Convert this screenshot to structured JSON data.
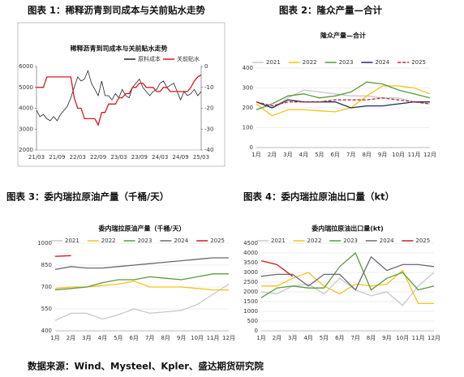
{
  "captions": [
    "图表 1：稀释沥青到司成本与关前贴水走势",
    "图表 2：隆众产量—合计",
    "图表 3：委内瑞拉原油产量（千桶/天）",
    "图表 4：委内瑞拉原油出口量（kt）"
  ],
  "source": "数据来源：Wind、Mysteel、Kpler、盛达期货研究院",
  "chart_data": [
    {
      "type": "line",
      "title": "稀释沥青到司成本与关前贴水走势",
      "categories": [
        "21/03",
        null,
        null,
        null,
        null,
        null,
        "21/09",
        null,
        null,
        null,
        null,
        null,
        "22/03",
        null,
        null,
        null,
        null,
        null,
        "22/09",
        null,
        null,
        null,
        null,
        null,
        "23/03",
        null,
        null,
        null,
        null,
        null,
        "23/09",
        null,
        null,
        null,
        null,
        null,
        "24/03",
        null,
        null,
        null,
        null,
        null,
        "24/09",
        null,
        null,
        null,
        null,
        null,
        "25/03"
      ],
      "series": [
        {
          "name": "原料成本",
          "color": "#222222",
          "values": [
            3900,
            3600,
            3700,
            3500,
            3400,
            3600,
            3400,
            3700,
            3900,
            4100,
            4500,
            5000,
            5500,
            5300,
            5400,
            5800,
            5200,
            4900,
            4600,
            5300,
            4600,
            4600,
            4400,
            4700,
            4500,
            4900,
            4600,
            4500,
            5000,
            5200,
            5400,
            5000,
            4800,
            4600,
            4800,
            4900,
            5200,
            5300,
            5000,
            5100,
            5200,
            4800,
            4400,
            4800,
            4600,
            4700,
            4900,
            4600,
            4800
          ]
        },
        {
          "name": "关前贴水",
          "color": "#d7191c",
          "axis": "y2",
          "values": [
            -10,
            -10,
            -10,
            -5,
            -5,
            -5,
            -5,
            -5,
            -5,
            -5,
            -5,
            -15,
            -20,
            -20,
            -25,
            -25,
            -25,
            -25,
            -28,
            -22,
            -22,
            -18,
            -18,
            -18,
            -15,
            -15,
            -13,
            -13,
            -10,
            -10,
            -8,
            -8,
            -10,
            -10,
            -10,
            -12,
            -12,
            -10,
            -10,
            -12,
            -12,
            -12,
            -12,
            -12,
            -12,
            -10,
            -7,
            -5,
            -4
          ]
        }
      ],
      "ylim": [
        2000,
        6000
      ],
      "yticks": [
        2000,
        3000,
        4000,
        5000,
        6000
      ],
      "y2lim": [
        -40,
        0
      ],
      "y2ticks": [
        0,
        -10,
        -20,
        -30,
        -40
      ],
      "grid": false,
      "legend": "top-right"
    },
    {
      "type": "line",
      "title": "隆众产量—合计",
      "categories": [
        "1月",
        "2月",
        "3月",
        "4月",
        "5月",
        "6月",
        "7月",
        "8月",
        "9月",
        "10月",
        "11月",
        "12月"
      ],
      "series": [
        {
          "name": "2021",
          "color": "#c8c8c8",
          "values": [
            230,
            200,
            250,
            290,
            280,
            270,
            260,
            260,
            250,
            250,
            230,
            220
          ]
        },
        {
          "name": "2022",
          "color": "#f2c418",
          "values": [
            220,
            160,
            190,
            190,
            185,
            180,
            200,
            260,
            310,
            310,
            300,
            270
          ]
        },
        {
          "name": "2023",
          "color": "#5a9b3a",
          "values": [
            190,
            220,
            260,
            270,
            250,
            260,
            280,
            330,
            320,
            290,
            270,
            250
          ]
        },
        {
          "name": "2024",
          "color": "#1f2d5a",
          "values": [
            230,
            200,
            240,
            230,
            230,
            230,
            200,
            210,
            210,
            220,
            230,
            230
          ]
        },
        {
          "name": "2025",
          "color": "#c0282d",
          "dash": true,
          "values": [
            230,
            210,
            230,
            230,
            230,
            240,
            240,
            240,
            250,
            240,
            230,
            220
          ]
        }
      ],
      "ylim": [
        0,
        400
      ],
      "yticks": [
        0,
        100,
        200,
        300,
        400
      ],
      "grid": true,
      "legend": "top"
    },
    {
      "type": "line",
      "title": "委内瑞拉原油产量（千桶/天）",
      "categories": [
        "1月",
        "2月",
        "3月",
        "4月",
        "5月",
        "6月",
        "7月",
        "8月",
        "9月",
        "10月",
        "11月",
        "12月"
      ],
      "series": [
        {
          "name": "2021",
          "color": "#c8c8c8",
          "values": [
            470,
            520,
            520,
            480,
            510,
            550,
            520,
            530,
            540,
            580,
            650,
            720
          ]
        },
        {
          "name": "2022",
          "color": "#f2c418",
          "values": [
            690,
            700,
            700,
            710,
            720,
            740,
            700,
            700,
            700,
            690,
            680,
            680
          ]
        },
        {
          "name": "2023",
          "color": "#5a9b3a",
          "values": [
            680,
            690,
            700,
            730,
            750,
            750,
            770,
            760,
            750,
            770,
            790,
            790
          ]
        },
        {
          "name": "2024",
          "color": "#6b6878",
          "values": [
            820,
            840,
            830,
            830,
            840,
            850,
            860,
            870,
            880,
            890,
            900,
            900
          ]
        },
        {
          "name": "2025",
          "color": "#d7191c",
          "values": [
            910,
            915,
            null,
            null,
            null,
            null,
            null,
            null,
            null,
            null,
            null,
            null
          ]
        }
      ],
      "ylim": [
        400,
        1000
      ],
      "yticks": [
        400,
        550,
        700,
        850,
        1000
      ],
      "grid": true,
      "legend": "top"
    },
    {
      "type": "line",
      "title": "委内瑞拉原油出口量(kt)",
      "categories": [
        "1月",
        "2月",
        "3月",
        "4月",
        "5月",
        "6月",
        "7月",
        "8月",
        "9月",
        "10月",
        "11月",
        "12月"
      ],
      "series": [
        {
          "name": "2021",
          "color": "#c8c8c8",
          "values": [
            2000,
            1900,
            2300,
            2400,
            1900,
            2700,
            2100,
            1800,
            2000,
            1300,
            2300,
            3000
          ]
        },
        {
          "name": "2022",
          "color": "#f2c418",
          "values": [
            2300,
            2300,
            2700,
            3000,
            2300,
            1900,
            2400,
            2300,
            2400,
            3100,
            1400,
            1400
          ]
        },
        {
          "name": "2023",
          "color": "#5a9b3a",
          "values": [
            1700,
            2200,
            2300,
            2200,
            2200,
            3300,
            4000,
            2100,
            2700,
            3000,
            2100,
            2300
          ]
        },
        {
          "name": "2024",
          "color": "#6b6878",
          "values": [
            2800,
            2900,
            2900,
            2300,
            2900,
            2900,
            2100,
            3800,
            3100,
            3400,
            3400,
            3300
          ]
        },
        {
          "name": "2025",
          "color": "#d7191c",
          "values": [
            3600,
            3400,
            2800,
            null,
            null,
            null,
            null,
            null,
            null,
            null,
            null,
            null
          ]
        }
      ],
      "ylim": [
        0,
        4500
      ],
      "yticks": [
        0,
        500,
        1000,
        1500,
        2000,
        2500,
        3000,
        3500,
        4000,
        4500
      ],
      "grid": true,
      "legend": "top"
    }
  ]
}
